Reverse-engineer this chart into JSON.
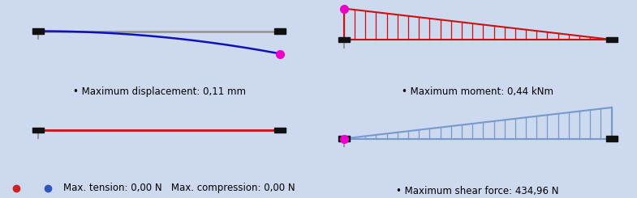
{
  "bg_color": "#ccd9ee",
  "divider_color": "#ffffff",
  "magenta": "#ee00cc",
  "black_sq": "#111111",
  "gray_beam": "#999999",
  "blue_line": "#1111bb",
  "red_hatch": "#cc1111",
  "blue_hatch": "#7799cc",
  "font_size": 8.5,
  "panel_labels": [
    "• Maximum displacement: 0,11 mm",
    "• Maximum moment: 0,44 kNm",
    "• Maximum shear force: 434,96 N"
  ],
  "axial_label": "Max. tension: 0,00 N   Max. compression: 0,00 N"
}
